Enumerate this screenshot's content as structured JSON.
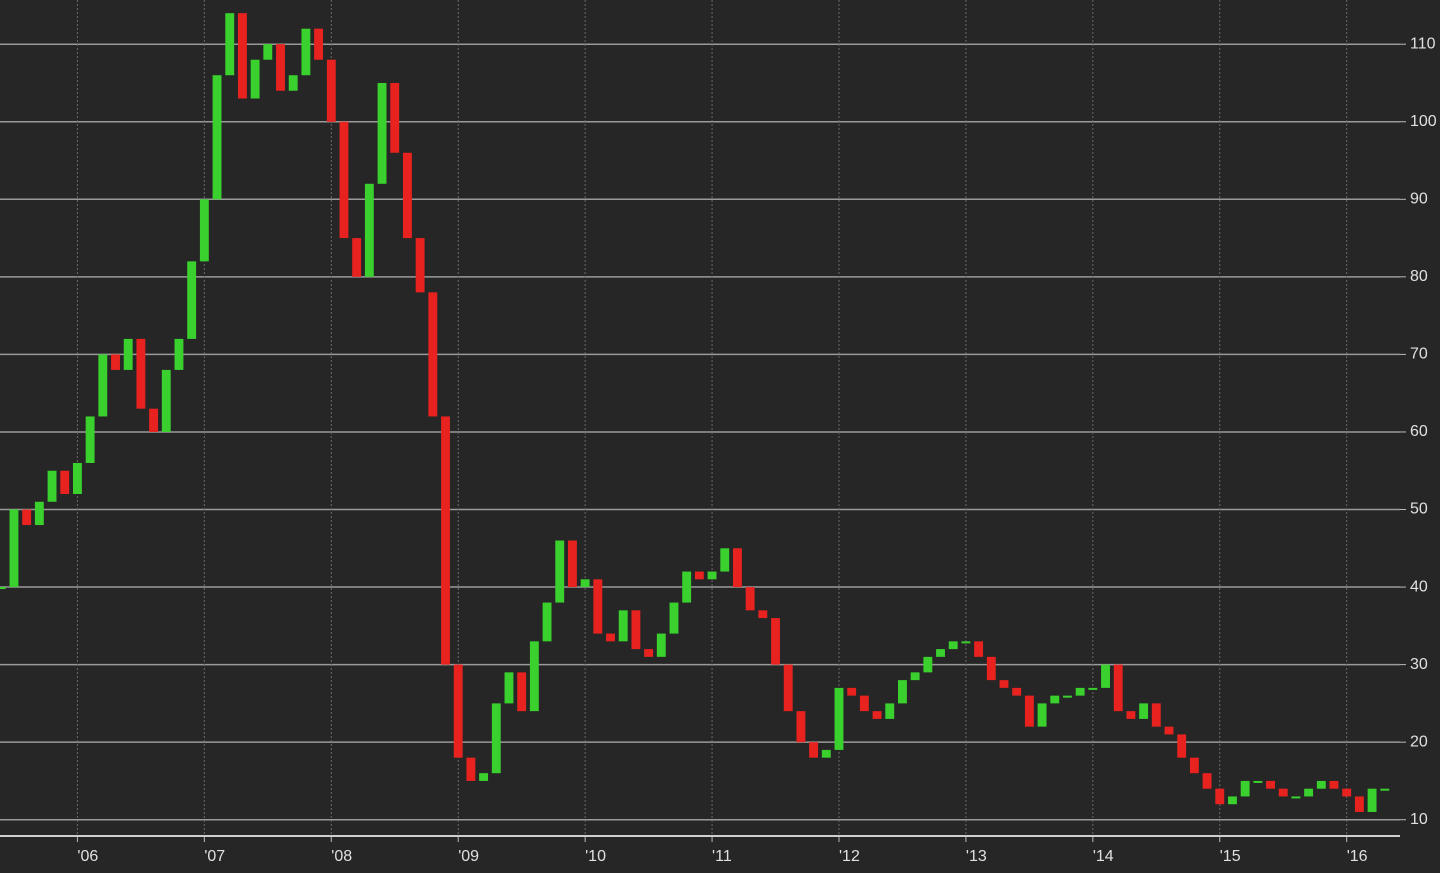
{
  "chart_data": {
    "type": "candlestick",
    "x": [
      2005.4,
      2005.5,
      2005.6,
      2005.7,
      2005.8,
      2005.9,
      2006.0,
      2006.1,
      2006.2,
      2006.3,
      2006.4,
      2006.5,
      2006.6,
      2006.7,
      2006.8,
      2006.9,
      2007.0,
      2007.1,
      2007.2,
      2007.3,
      2007.4,
      2007.5,
      2007.6,
      2007.7,
      2007.8,
      2007.9,
      2008.0,
      2008.1,
      2008.2,
      2008.3,
      2008.4,
      2008.5,
      2008.6,
      2008.7,
      2008.8,
      2008.9,
      2009.0,
      2009.1,
      2009.2,
      2009.3,
      2009.4,
      2009.5,
      2009.6,
      2009.7,
      2009.8,
      2009.9,
      2010.0,
      2010.1,
      2010.2,
      2010.3,
      2010.4,
      2010.5,
      2010.6,
      2010.7,
      2010.8,
      2010.9,
      2011.0,
      2011.1,
      2011.2,
      2011.3,
      2011.4,
      2011.5,
      2011.6,
      2011.7,
      2011.8,
      2011.9,
      2012.0,
      2012.1,
      2012.2,
      2012.3,
      2012.4,
      2012.5,
      2012.6,
      2012.7,
      2012.8,
      2012.9,
      2013.0,
      2013.1,
      2013.2,
      2013.3,
      2013.4,
      2013.5,
      2013.6,
      2013.7,
      2013.8,
      2013.9,
      2014.0,
      2014.1,
      2014.2,
      2014.3,
      2014.4,
      2014.5,
      2014.6,
      2014.7,
      2014.8,
      2014.9,
      2015.0,
      2015.1,
      2015.2,
      2015.3,
      2015.4,
      2015.5,
      2015.6,
      2015.7,
      2015.8,
      2015.9,
      2016.0,
      2016.1,
      2016.2,
      2016.3
    ],
    "values": [
      40,
      50,
      48,
      51,
      55,
      52,
      56,
      62,
      70,
      68,
      72,
      63,
      60,
      68,
      72,
      82,
      90,
      106,
      114,
      103,
      108,
      110,
      104,
      106,
      112,
      108,
      100,
      85,
      80,
      92,
      105,
      96,
      85,
      78,
      62,
      30,
      18,
      15,
      16,
      25,
      29,
      24,
      33,
      38,
      46,
      40,
      41,
      34,
      33,
      37,
      32,
      31,
      34,
      38,
      42,
      41,
      42,
      45,
      40,
      37,
      36,
      30,
      24,
      20,
      18,
      19,
      27,
      26,
      24,
      23,
      25,
      28,
      29,
      31,
      32,
      33,
      33,
      31,
      28,
      27,
      26,
      22,
      25,
      26,
      26,
      27,
      27,
      30,
      24,
      23,
      25,
      22,
      21,
      18,
      16,
      14,
      12,
      13,
      15,
      15,
      14,
      13,
      13,
      14,
      15,
      14,
      13,
      11,
      14,
      14
    ],
    "up_color": "#3ad12f",
    "down_color": "#e8231f",
    "xlim": [
      2005.39,
      2016.42
    ],
    "xticks": [
      {
        "value": 2006,
        "label": "'06"
      },
      {
        "value": 2007,
        "label": "'07"
      },
      {
        "value": 2008,
        "label": "'08"
      },
      {
        "value": 2009,
        "label": "'09"
      },
      {
        "value": 2010,
        "label": "'10"
      },
      {
        "value": 2011,
        "label": "'11"
      },
      {
        "value": 2012,
        "label": "'12"
      },
      {
        "value": 2013,
        "label": "'13"
      },
      {
        "value": 2014,
        "label": "'14"
      },
      {
        "value": 2015,
        "label": "'15"
      },
      {
        "value": 2016,
        "label": "'16"
      }
    ],
    "ylim": [
      7.9,
      115.7
    ],
    "yticks": [
      10,
      20,
      30,
      40,
      50,
      60,
      70,
      80,
      90,
      100,
      110
    ],
    "grid": true
  }
}
